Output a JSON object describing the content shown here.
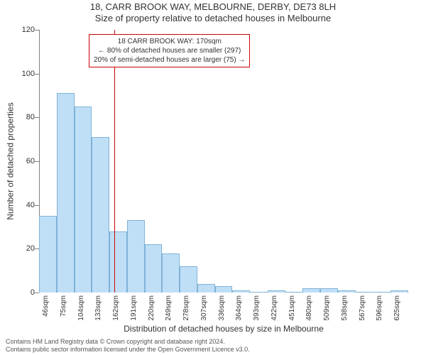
{
  "title": {
    "line1": "18, CARR BROOK WAY, MELBOURNE, DERBY, DE73 8LH",
    "line2": "Size of property relative to detached houses in Melbourne"
  },
  "axes": {
    "ylabel": "Number of detached properties",
    "xlabel": "Distribution of detached houses by size in Melbourne",
    "ylim": [
      0,
      120
    ],
    "yticks": [
      0,
      20,
      40,
      60,
      80,
      100,
      120
    ],
    "axis_color": "#808080",
    "tick_fontsize": 11,
    "label_fontsize": 12,
    "background": "#ffffff"
  },
  "chart": {
    "type": "histogram",
    "categories": [
      "46sqm",
      "75sqm",
      "104sqm",
      "133sqm",
      "162sqm",
      "191sqm",
      "220sqm",
      "249sqm",
      "278sqm",
      "307sqm",
      "336sqm",
      "364sqm",
      "393sqm",
      "422sqm",
      "451sqm",
      "480sqm",
      "509sqm",
      "538sqm",
      "567sqm",
      "596sqm",
      "625sqm"
    ],
    "values": [
      35,
      91,
      85,
      71,
      28,
      33,
      22,
      18,
      12,
      4,
      3,
      1,
      0,
      1,
      0,
      2,
      2,
      1,
      0,
      0,
      1
    ],
    "bar_fill": "#bfdff7",
    "bar_stroke": "#7fb3d5",
    "bar_stroke_width": 1,
    "bar_width_ratio": 1.0
  },
  "marker": {
    "line_color": "#cc0000",
    "line_width": 1,
    "value_label": "170sqm",
    "bin_index": 4
  },
  "callout": {
    "border_color": "#cc0000",
    "background": "#ffffff",
    "line1": "18 CARR BROOK WAY: 170sqm",
    "line2": "← 80% of detached houses are smaller (297)",
    "line3": "20% of semi-detached houses are larger (75) →"
  },
  "footer": {
    "line1": "Contains HM Land Registry data © Crown copyright and database right 2024.",
    "line2": "Contains public sector information licensed under the Open Government Licence v3.0."
  }
}
